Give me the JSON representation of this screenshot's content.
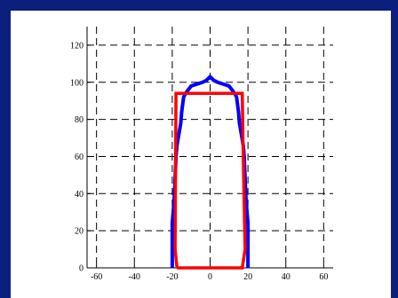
{
  "colors": {
    "frame": "#0c1f7c",
    "panel": "#ffffff",
    "grid": "#000000",
    "series_blue": "#0000ff",
    "series_red": "#ff0000"
  },
  "chart_data": {
    "type": "line",
    "title": "",
    "xlabel": "",
    "ylabel": "",
    "xlim": [
      -65,
      65
    ],
    "ylim": [
      0,
      130
    ],
    "xticks": [
      -60,
      -40,
      -20,
      0,
      20,
      40,
      60
    ],
    "yticks": [
      0,
      20,
      40,
      60,
      80,
      100,
      120
    ],
    "xtick_labels": [
      "-60",
      "-40",
      "-20",
      "0",
      "20",
      "40",
      "60"
    ],
    "ytick_labels": [
      "0",
      "20",
      "40",
      "60",
      "80",
      "100",
      "120"
    ],
    "grid": true,
    "grid_style": "dashed",
    "series": [
      {
        "color": "#0000ff",
        "points": [
          [
            -20,
            0
          ],
          [
            -20,
            12
          ],
          [
            -20,
            24
          ],
          [
            -19,
            36
          ],
          [
            -18.5,
            48
          ],
          [
            -18,
            60
          ],
          [
            -17.5,
            66
          ],
          [
            -16.5,
            72
          ],
          [
            -15.5,
            78
          ],
          [
            -15,
            84
          ],
          [
            -14.5,
            88
          ],
          [
            -14,
            92
          ],
          [
            -13,
            94
          ],
          [
            -11.5,
            96
          ],
          [
            -10,
            98
          ],
          [
            -7,
            99
          ],
          [
            -4,
            100
          ],
          [
            -2,
            101
          ],
          [
            -1,
            102
          ],
          [
            0,
            103
          ],
          [
            1,
            102
          ],
          [
            2,
            101
          ],
          [
            4,
            100
          ],
          [
            7,
            99
          ],
          [
            10,
            98
          ],
          [
            11.5,
            96
          ],
          [
            13,
            94
          ],
          [
            14,
            92
          ],
          [
            14.5,
            88
          ],
          [
            15,
            84
          ],
          [
            15.5,
            78
          ],
          [
            16.5,
            72
          ],
          [
            17.5,
            66
          ],
          [
            18,
            60
          ],
          [
            18.5,
            48
          ],
          [
            19,
            36
          ],
          [
            20,
            24
          ],
          [
            20,
            12
          ],
          [
            20,
            0
          ]
        ]
      },
      {
        "color": "#ff0000",
        "points": [
          [
            -17.5,
            0
          ],
          [
            -18.5,
            10
          ],
          [
            -18,
            94
          ],
          [
            17,
            94
          ],
          [
            17.5,
            60
          ],
          [
            18.5,
            10
          ],
          [
            17,
            0
          ],
          [
            -17.5,
            0
          ]
        ]
      }
    ]
  }
}
